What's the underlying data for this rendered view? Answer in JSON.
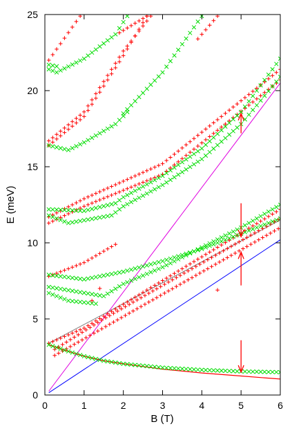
{
  "chart_data": {
    "type": "scatter",
    "xlabel": "B (T)",
    "ylabel": "E (meV)",
    "xlim": [
      0,
      6
    ],
    "ylim": [
      0,
      25
    ],
    "x_ticks": [
      "0",
      "1",
      "2",
      "3",
      "4",
      "5",
      "6"
    ],
    "y_ticks": [
      "0",
      "5",
      "10",
      "15",
      "20",
      "25"
    ],
    "grid": false,
    "legend": "none",
    "colors": {
      "plus_marker": "#ff0000",
      "cross_marker": "#00dd00",
      "magenta_line": "#e000e0",
      "blue_line": "#0000ff",
      "gray_line": "#808080",
      "red_curve": "#ff0000",
      "arrow": "#ff0000"
    },
    "marker_series": [
      {
        "marker": "plus",
        "x_start": 0.25,
        "x_end": 6.0,
        "knots": [
          [
            0.25,
            2.6
          ],
          [
            6.0,
            11.0
          ]
        ]
      },
      {
        "marker": "plus",
        "x_start": 0.25,
        "x_end": 6.0,
        "knots": [
          [
            0.25,
            3.0
          ],
          [
            1.5,
            5.0
          ],
          [
            6.0,
            11.6
          ]
        ]
      },
      {
        "marker": "plus",
        "x_start": 0.1,
        "x_end": 6.0,
        "knots": [
          [
            0.1,
            3.4
          ],
          [
            1.0,
            4.4
          ],
          [
            6.0,
            12.2
          ]
        ]
      },
      {
        "marker": "plus",
        "x_start": 0.1,
        "x_end": 1.8,
        "knots": [
          [
            0.1,
            7.8
          ],
          [
            1.0,
            8.7
          ],
          [
            1.8,
            9.9
          ]
        ]
      },
      {
        "marker": "plus",
        "x_start": 0.1,
        "x_end": 6.0,
        "knots": [
          [
            0.1,
            11.3
          ],
          [
            1.0,
            12.4
          ],
          [
            3.0,
            14.5
          ],
          [
            6.0,
            20.7
          ]
        ]
      },
      {
        "marker": "plus",
        "x_start": 0.1,
        "x_end": 6.0,
        "knots": [
          [
            0.1,
            11.7
          ],
          [
            1.0,
            12.9
          ],
          [
            3.0,
            15.2
          ],
          [
            6.0,
            21.4
          ]
        ]
      },
      {
        "marker": "plus",
        "x_start": 0.1,
        "x_end": 2.6,
        "knots": [
          [
            0.1,
            16.4
          ],
          [
            1.0,
            18.3
          ],
          [
            2.0,
            22.3
          ],
          [
            2.6,
            24.9
          ]
        ]
      },
      {
        "marker": "plus",
        "x_start": 0.1,
        "x_end": 2.7,
        "knots": [
          [
            0.1,
            16.7
          ],
          [
            1.0,
            18.6
          ],
          [
            2.0,
            22.6
          ],
          [
            2.7,
            24.9
          ]
        ]
      },
      {
        "marker": "plus",
        "x_start": 0.1,
        "x_end": 0.9,
        "knots": [
          [
            0.1,
            22.0
          ],
          [
            0.9,
            24.9
          ]
        ]
      },
      {
        "marker": "plus",
        "x_start": 1.9,
        "x_end": 2.6,
        "knots": [
          [
            1.9,
            23.8
          ],
          [
            2.6,
            24.9
          ]
        ]
      },
      {
        "marker": "plus",
        "x_start": 3.9,
        "x_end": 4.4,
        "knots": [
          [
            3.9,
            23.4
          ],
          [
            4.4,
            24.9
          ]
        ]
      },
      {
        "marker": "cross",
        "x_start": 0.1,
        "x_end": 6.0,
        "knots": [
          [
            0.1,
            3.3
          ],
          [
            0.5,
            2.95
          ],
          [
            1.0,
            2.55
          ],
          [
            1.5,
            2.25
          ],
          [
            2.0,
            2.05
          ],
          [
            3.0,
            1.8
          ],
          [
            4.0,
            1.65
          ],
          [
            5.0,
            1.55
          ],
          [
            6.0,
            1.5
          ]
        ]
      },
      {
        "marker": "cross",
        "x_start": 0.1,
        "x_end": 1.3,
        "knots": [
          [
            0.1,
            6.7
          ],
          [
            0.6,
            6.2
          ],
          [
            1.3,
            6.0
          ]
        ]
      },
      {
        "marker": "cross",
        "x_start": 0.1,
        "x_end": 6.0,
        "knots": [
          [
            0.1,
            7.9
          ],
          [
            1.0,
            7.6
          ],
          [
            2.0,
            8.1
          ],
          [
            3.0,
            8.8
          ],
          [
            4.0,
            9.6
          ],
          [
            5.0,
            10.6
          ],
          [
            6.0,
            11.6
          ]
        ]
      },
      {
        "marker": "cross",
        "x_start": 0.1,
        "x_end": 6.0,
        "knots": [
          [
            0.1,
            7.1
          ],
          [
            1.5,
            6.5
          ],
          [
            2.0,
            7.3
          ],
          [
            3.0,
            8.4
          ],
          [
            4.0,
            9.7
          ],
          [
            5.0,
            11.0
          ],
          [
            6.0,
            12.5
          ]
        ]
      },
      {
        "marker": "cross",
        "x_start": 0.1,
        "x_end": 6.0,
        "knots": [
          [
            0.1,
            11.8
          ],
          [
            0.6,
            11.3
          ],
          [
            1.7,
            11.8
          ],
          [
            2.0,
            12.4
          ],
          [
            3.0,
            13.8
          ],
          [
            4.0,
            15.5
          ],
          [
            5.0,
            17.8
          ],
          [
            6.0,
            20.9
          ]
        ]
      },
      {
        "marker": "cross",
        "x_start": 0.1,
        "x_end": 6.0,
        "knots": [
          [
            0.1,
            12.2
          ],
          [
            1.0,
            12.1
          ],
          [
            1.8,
            12.6
          ],
          [
            2.0,
            13.0
          ],
          [
            3.0,
            14.4
          ],
          [
            4.0,
            16.2
          ],
          [
            5.0,
            18.6
          ],
          [
            6.0,
            22.1
          ]
        ]
      },
      {
        "marker": "cross",
        "x_start": 0.1,
        "x_end": 2.1,
        "knots": [
          [
            0.1,
            16.4
          ],
          [
            0.6,
            16.1
          ],
          [
            1.0,
            16.6
          ],
          [
            1.8,
            17.8
          ],
          [
            2.1,
            18.6
          ]
        ]
      },
      {
        "marker": "cross",
        "x_start": 0.1,
        "x_end": 2.1,
        "knots": [
          [
            0.1,
            21.4
          ],
          [
            0.3,
            21.2
          ],
          [
            1.0,
            22.1
          ],
          [
            1.8,
            23.7
          ],
          [
            2.1,
            24.9
          ]
        ]
      },
      {
        "marker": "cross",
        "x_start": 0.1,
        "x_end": 4.0,
        "knots": [
          [
            2.0,
            18.5
          ],
          [
            3.0,
            21.2
          ],
          [
            4.0,
            24.9
          ]
        ]
      },
      {
        "marker": "cross",
        "x_start": 0.1,
        "x_end": 0.3,
        "knots": [
          [
            0.1,
            21.7
          ],
          [
            0.3,
            21.6
          ]
        ]
      }
    ],
    "stray_points": [
      {
        "marker": "plus",
        "x": 4.4,
        "y": 6.9
      },
      {
        "marker": "plus",
        "x": 1.2,
        "y": 6.2
      },
      {
        "marker": "plus",
        "x": 1.4,
        "y": 7.0
      }
    ],
    "lines": [
      {
        "color": "magenta",
        "x": [
          0.1,
          6.0
        ],
        "y": [
          0.25,
          20.5
        ]
      },
      {
        "color": "blue",
        "x": [
          0.1,
          6.0
        ],
        "y": [
          0.15,
          10.2
        ]
      },
      {
        "color": "gray",
        "x": [
          0.1,
          6.0
        ],
        "y": [
          3.4,
          11.5
        ]
      }
    ],
    "red_curve": {
      "x": [
        0.1,
        0.5,
        1.0,
        1.5,
        2.0,
        3.0,
        4.0,
        5.0,
        6.0
      ],
      "y": [
        3.3,
        2.95,
        2.55,
        2.25,
        2.05,
        1.7,
        1.45,
        1.25,
        1.05
      ]
    },
    "arrows": [
      {
        "x": 5.0,
        "y_from": 17.2,
        "y_to": 18.5
      },
      {
        "x": 5.0,
        "y_from": 12.6,
        "y_to": 10.4
      },
      {
        "x": 5.0,
        "y_from": 7.2,
        "y_to": 9.4
      },
      {
        "x": 5.0,
        "y_from": 3.6,
        "y_to": 1.5
      }
    ]
  }
}
